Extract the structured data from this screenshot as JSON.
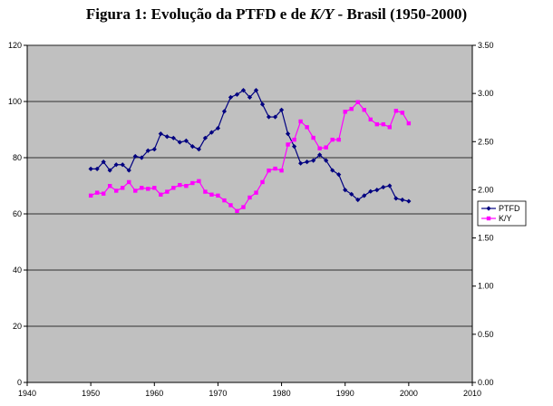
{
  "title": {
    "prefix": "Figura 1: Evolução da PTFD e de ",
    "italic": "K/Y",
    "suffix": " - Brasil (1950-2000)"
  },
  "chart_data": {
    "type": "line",
    "title": "Figura 1: Evolução da PTFD e de K/Y - Brasil (1950-2000)",
    "xlim": [
      1940,
      2010
    ],
    "x_ticks": [
      1940,
      1950,
      1960,
      1970,
      1980,
      1990,
      2000,
      2010
    ],
    "ylim_left": [
      0,
      120
    ],
    "y_ticks_left": [
      0,
      20,
      40,
      60,
      80,
      100,
      120
    ],
    "ylim_right": [
      0,
      3.5
    ],
    "y_ticks_right": [
      "0.00",
      "0.50",
      "1.00",
      "1.50",
      "2.00",
      "2.50",
      "3.00",
      "3.50"
    ],
    "grid": true,
    "legend_position": "right",
    "plot_background": "#c0c0c0",
    "series": [
      {
        "name": "PTFD",
        "axis": "left",
        "color": "#000080",
        "marker": "diamond",
        "x": [
          1950,
          1951,
          1952,
          1953,
          1954,
          1955,
          1956,
          1957,
          1958,
          1959,
          1960,
          1961,
          1962,
          1963,
          1964,
          1965,
          1966,
          1967,
          1968,
          1969,
          1970,
          1971,
          1972,
          1973,
          1974,
          1975,
          1976,
          1977,
          1978,
          1979,
          1980,
          1981,
          1982,
          1983,
          1984,
          1985,
          1986,
          1987,
          1988,
          1989,
          1990,
          1991,
          1992,
          1993,
          1994,
          1995,
          1996,
          1997,
          1998,
          1999,
          2000
        ],
        "values": [
          76,
          76,
          78.5,
          75.5,
          77.5,
          77.5,
          75.5,
          80.5,
          80,
          82.5,
          83,
          88.5,
          87.5,
          87,
          85.5,
          86,
          84,
          83,
          87,
          89,
          90.5,
          96.5,
          101.5,
          102.5,
          104,
          101.5,
          104,
          99,
          94.5,
          94.5,
          97,
          88.5,
          84,
          78,
          78.5,
          79,
          81,
          79,
          75.5,
          74,
          68.5,
          67,
          65,
          66.5,
          68,
          68.5,
          69.5,
          70,
          65.5,
          65,
          64.5
        ]
      },
      {
        "name": "K/Y",
        "axis": "right",
        "color": "#ff00ff",
        "marker": "square",
        "x": [
          1950,
          1951,
          1952,
          1953,
          1954,
          1955,
          1956,
          1957,
          1958,
          1959,
          1960,
          1961,
          1962,
          1963,
          1964,
          1965,
          1966,
          1967,
          1968,
          1969,
          1970,
          1971,
          1972,
          1973,
          1974,
          1975,
          1976,
          1977,
          1978,
          1979,
          1980,
          1981,
          1982,
          1983,
          1984,
          1985,
          1986,
          1987,
          1988,
          1989,
          1990,
          1991,
          1992,
          1993,
          1994,
          1995,
          1996,
          1997,
          1998,
          1999,
          2000
        ],
        "values": [
          1.94,
          1.97,
          1.96,
          2.04,
          1.99,
          2.02,
          2.08,
          1.99,
          2.02,
          2.01,
          2.02,
          1.95,
          1.98,
          2.02,
          2.05,
          2.04,
          2.07,
          2.09,
          1.98,
          1.95,
          1.94,
          1.89,
          1.84,
          1.78,
          1.82,
          1.92,
          1.97,
          2.08,
          2.2,
          2.22,
          2.2,
          2.47,
          2.52,
          2.71,
          2.65,
          2.54,
          2.43,
          2.44,
          2.52,
          2.52,
          2.81,
          2.84,
          2.91,
          2.83,
          2.73,
          2.68,
          2.68,
          2.65,
          2.82,
          2.8,
          2.69
        ]
      }
    ]
  }
}
